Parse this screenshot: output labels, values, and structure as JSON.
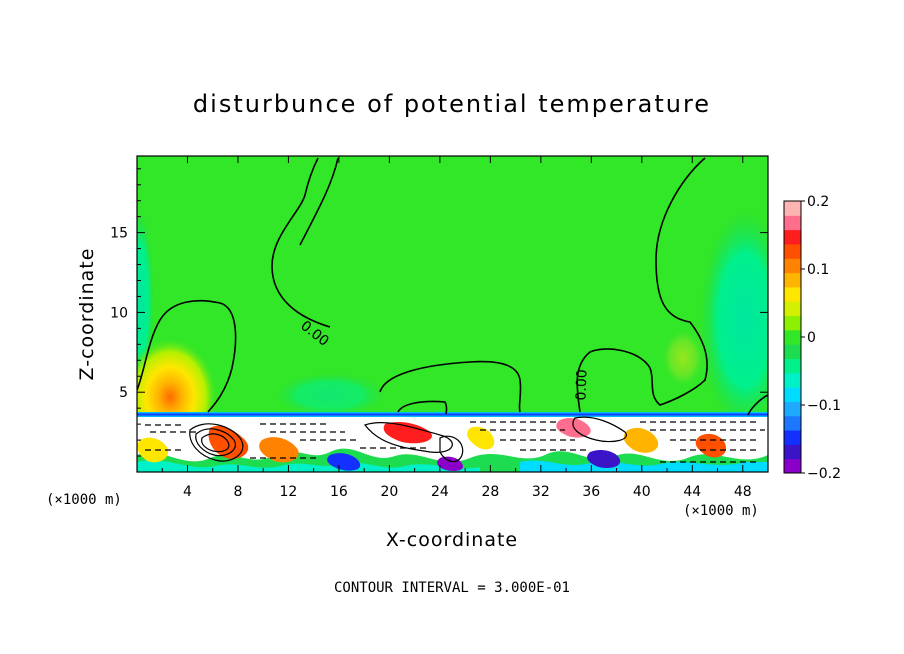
{
  "chart_data": {
    "type": "heatmap",
    "title": "disturbunce of potential temperature",
    "xlabel": "X-coordinate",
    "ylabel": "Z-coordinate",
    "x_unit_label_left": "(×1000 m)",
    "x_unit_label_right": "(×1000 m)",
    "xlim": [
      0,
      50
    ],
    "ylim": [
      0,
      19.8
    ],
    "x_ticks": [
      4,
      8,
      12,
      16,
      20,
      24,
      28,
      32,
      36,
      40,
      44,
      48
    ],
    "x_tick_labels": [
      "4",
      "8",
      "12",
      "16",
      "20",
      "24",
      "28",
      "32",
      "36",
      "40",
      "44",
      "48"
    ],
    "y_ticks": [
      5,
      10,
      15
    ],
    "y_tick_labels": [
      "5",
      "10",
      "15"
    ],
    "contour_label": "0.00",
    "contour_interval_text": "CONTOUR INTERVAL = 3.000E-01",
    "colorbar": {
      "range": [
        -0.2,
        0.2
      ],
      "tick_values": [
        0.2,
        0.1,
        0,
        -0.1,
        -0.2
      ],
      "tick_labels": [
        "0.2",
        "0.1",
        "0",
        "−0.1",
        "−0.2"
      ],
      "colors": [
        "#8b00c8",
        "#3c14c8",
        "#1430ff",
        "#1e78ff",
        "#1eaaff",
        "#00dcff",
        "#00f0c8",
        "#00f08c",
        "#1edc50",
        "#32e628",
        "#8cf000",
        "#d2f000",
        "#ffe600",
        "#ffb400",
        "#ff8200",
        "#ff5000",
        "#ff1e1e",
        "#ff6e8c",
        "#ffb4b4"
      ]
    },
    "background_value": 0.0,
    "features": [
      {
        "name": "warm-blob-left",
        "x": 2.4,
        "z": 5.0,
        "value": 0.12
      },
      {
        "name": "warm-blob-right",
        "x": 43.4,
        "z": 7.4,
        "value": 0.04
      },
      {
        "name": "cool-band-right",
        "x": 47,
        "z": 9.0,
        "value": -0.03
      },
      {
        "name": "cool-band-left",
        "x": 0.5,
        "z": 10.0,
        "value": -0.02
      }
    ]
  }
}
